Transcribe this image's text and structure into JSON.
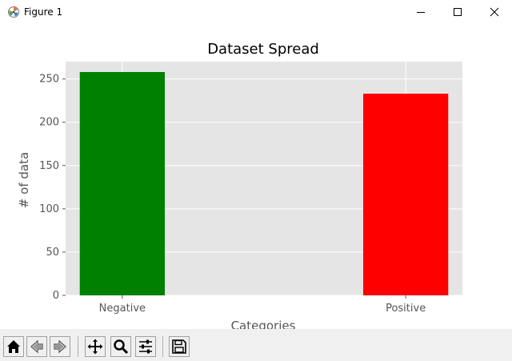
{
  "window": {
    "title": "Figure 1"
  },
  "toolbar": {
    "buttons": [
      {
        "name": "home-button",
        "icon": "home-icon"
      },
      {
        "name": "back-button",
        "icon": "arrow-left-icon"
      },
      {
        "name": "forward-button",
        "icon": "arrow-right-icon"
      },
      {
        "name": "pan-button",
        "icon": "move-icon"
      },
      {
        "name": "zoom-button",
        "icon": "magnifier-icon"
      },
      {
        "name": "subplots-button",
        "icon": "sliders-icon"
      },
      {
        "name": "save-button",
        "icon": "floppy-icon"
      }
    ]
  },
  "chart_data": {
    "type": "bar",
    "title": "Dataset Spread",
    "xlabel": "Categories",
    "ylabel": "# of data",
    "categories": [
      "Negative",
      "Positive"
    ],
    "values": [
      258,
      233
    ],
    "colors": [
      "#008000",
      "#ff0000"
    ],
    "ylim": [
      0,
      270
    ],
    "yticks": [
      0,
      50,
      100,
      150,
      200,
      250
    ],
    "grid": true,
    "background": "#e5e5e5"
  }
}
